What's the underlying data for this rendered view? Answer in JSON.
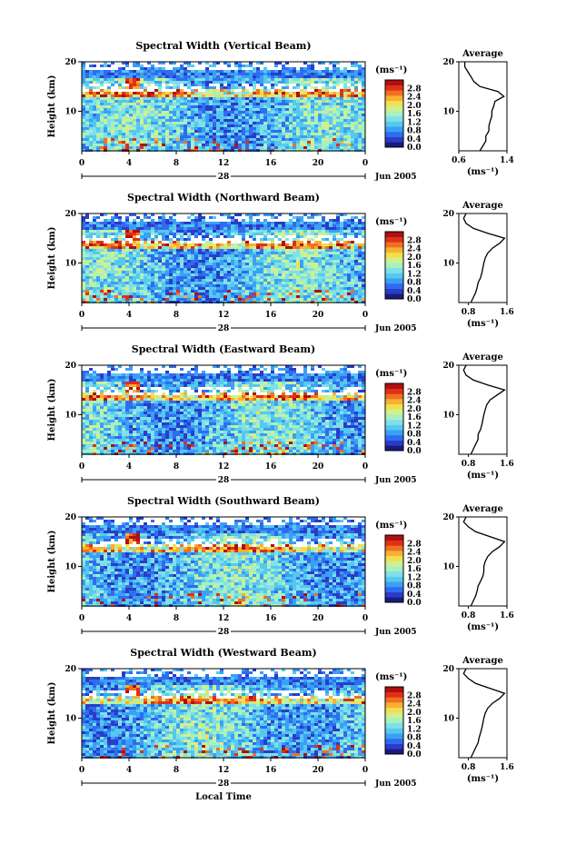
{
  "common": {
    "ylabel": "Height (km)",
    "x_ticks": [
      "0",
      "4",
      "8",
      "12",
      "16",
      "20",
      "0"
    ],
    "x_domain": [
      0,
      24
    ],
    "y_ticks": [
      "10",
      "20"
    ],
    "y_domain": [
      2,
      20
    ],
    "colorbar_unit": "(ms⁻¹)",
    "colorbar_ticks": [
      "0.0",
      "0.4",
      "0.8",
      "1.2",
      "1.6",
      "2.0",
      "2.4",
      "2.8"
    ],
    "colorbar_range": [
      0.0,
      3.2
    ],
    "date_label": "Jun 2005",
    "avg_title": "Average",
    "avg_xlabel": "(ms⁻¹)",
    "xlabel_bottom": "Local Time"
  },
  "chart_data": [
    {
      "type": "heatmap",
      "title": "Spectral Width (Vertical Beam)",
      "day_label": "28",
      "avg_x_ticks": [
        "0.6",
        "1.4"
      ],
      "avg_xlim": [
        0.6,
        1.4
      ],
      "avg_profile": {
        "height_km": [
          2,
          3,
          4,
          5,
          6,
          7,
          8,
          9,
          10,
          11,
          12,
          13,
          14,
          15,
          16,
          17,
          18,
          19,
          20
        ],
        "width_ms": [
          0.95,
          1.0,
          1.05,
          1.05,
          1.1,
          1.1,
          1.12,
          1.15,
          1.15,
          1.18,
          1.2,
          1.35,
          1.25,
          0.95,
          0.85,
          0.8,
          0.75,
          0.7,
          0.7
        ]
      }
    },
    {
      "type": "heatmap",
      "title": "Spectral Width (Northward Beam)",
      "day_label": "28",
      "avg_x_ticks": [
        "0.8",
        "1.6"
      ],
      "avg_xlim": [
        0.6,
        1.6
      ],
      "avg_profile": {
        "height_km": [
          2,
          3,
          4,
          5,
          6,
          7,
          8,
          9,
          10,
          11,
          12,
          13,
          14,
          15,
          16,
          17,
          18,
          19,
          20
        ],
        "width_ms": [
          0.85,
          0.9,
          0.95,
          0.98,
          1.0,
          1.05,
          1.08,
          1.1,
          1.12,
          1.15,
          1.2,
          1.3,
          1.45,
          1.55,
          1.2,
          0.9,
          0.75,
          0.7,
          0.75
        ]
      }
    },
    {
      "type": "heatmap",
      "title": "Spectral Width (Eastward Beam)",
      "day_label": "28",
      "avg_x_ticks": [
        "0.8",
        "1.6"
      ],
      "avg_xlim": [
        0.6,
        1.6
      ],
      "avg_profile": {
        "height_km": [
          2,
          3,
          4,
          5,
          6,
          7,
          8,
          9,
          10,
          11,
          12,
          13,
          14,
          15,
          16,
          17,
          18,
          19,
          20
        ],
        "width_ms": [
          0.85,
          0.9,
          0.95,
          1.0,
          1.0,
          1.05,
          1.08,
          1.1,
          1.12,
          1.15,
          1.18,
          1.25,
          1.4,
          1.55,
          1.2,
          0.9,
          0.75,
          0.7,
          0.75
        ]
      }
    },
    {
      "type": "heatmap",
      "title": "Spectral Width (Southward Beam)",
      "day_label": "28",
      "avg_x_ticks": [
        "0.8",
        "1.6"
      ],
      "avg_xlim": [
        0.6,
        1.6
      ],
      "avg_profile": {
        "height_km": [
          2,
          3,
          4,
          5,
          6,
          7,
          8,
          9,
          10,
          11,
          12,
          13,
          14,
          15,
          16,
          17,
          18,
          19,
          20
        ],
        "width_ms": [
          0.85,
          0.9,
          0.95,
          0.98,
          1.0,
          1.05,
          1.1,
          1.12,
          1.12,
          1.15,
          1.2,
          1.3,
          1.45,
          1.55,
          1.25,
          0.95,
          0.8,
          0.7,
          0.75
        ]
      }
    },
    {
      "type": "heatmap",
      "title": "Spectral Width (Westward Beam)",
      "day_label": "28",
      "avg_x_ticks": [
        "0.8",
        "1.6"
      ],
      "avg_xlim": [
        0.6,
        1.6
      ],
      "avg_profile": {
        "height_km": [
          2,
          3,
          4,
          5,
          6,
          7,
          8,
          9,
          10,
          11,
          12,
          13,
          14,
          15,
          16,
          17,
          18,
          19,
          20
        ],
        "width_ms": [
          0.85,
          0.9,
          0.95,
          1.0,
          1.02,
          1.05,
          1.08,
          1.1,
          1.12,
          1.15,
          1.2,
          1.3,
          1.45,
          1.55,
          1.25,
          0.95,
          0.8,
          0.7,
          0.75
        ]
      }
    }
  ]
}
